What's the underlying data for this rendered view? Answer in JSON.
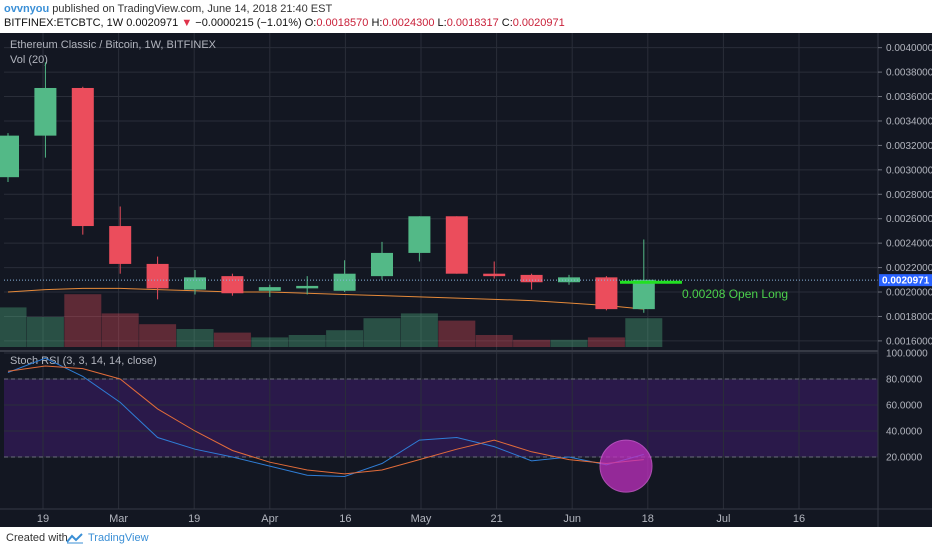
{
  "header": {
    "user": "ovvnyou",
    "published": "published on TradingView.com, June 14, 2018 21:40 EST",
    "symbol_line": "BITFINEX:ETCBTC, 1W",
    "last": "0.0020971",
    "change": "−0.0000215 (−1.01%)",
    "o_label": "O:",
    "o_value": "0.0018570",
    "h_label": "H:",
    "h_value": "0.0024300",
    "l_label": "L:",
    "l_value": "0.0018317",
    "c_label": "C:",
    "c_value": "0.0020971"
  },
  "main_pane": {
    "title": "Ethereum Classic / Bitcoin, 1W, BITFINEX",
    "vol_label": "Vol (20)",
    "price_tag": "0.0020971",
    "annotation": "0.00208 Open Long",
    "y_ticks": [
      "0.0040000",
      "0.0038000",
      "0.0036000",
      "0.0034000",
      "0.0032000",
      "0.0030000",
      "0.0028000",
      "0.0026000",
      "0.0024000",
      "0.0022000",
      "0.0020000",
      "0.0018000",
      "0.0016000"
    ]
  },
  "rsi_pane": {
    "title": "Stoch RSI (3, 3, 14, 14, close)",
    "y_ticks": [
      "100.0000",
      "80.0000",
      "60.0000",
      "40.0000",
      "20.0000"
    ]
  },
  "x_axis": {
    "labels": [
      "19",
      "Mar",
      "19",
      "Apr",
      "16",
      "May",
      "21",
      "Jun",
      "18",
      "Jul",
      "16"
    ]
  },
  "footer": {
    "created": "Created with",
    "brand": "TradingView"
  },
  "colors": {
    "up": "#53b987",
    "down": "#eb4d5c",
    "bg": "#131722",
    "band": "#2e1a4f",
    "k_line": "#2f7dd6",
    "d_line": "#e26c3a",
    "highlight": "#c030c0"
  },
  "chart_data": [
    {
      "type": "candlestick",
      "title": "Ethereum Classic / Bitcoin, 1W, BITFINEX",
      "ylim": [
        0.00155,
        0.00412
      ],
      "x_labels": [
        "19",
        "Mar",
        "19",
        "Apr",
        "16",
        "May",
        "21",
        "Jun",
        "18",
        "Jul",
        "16"
      ],
      "candles": [
        {
          "o": 0.00294,
          "h": 0.0033,
          "l": 0.0029,
          "c": 0.00328
        },
        {
          "o": 0.00328,
          "h": 0.00388,
          "l": 0.0031,
          "c": 0.00367
        },
        {
          "o": 0.00367,
          "h": 0.00368,
          "l": 0.00247,
          "c": 0.00254
        },
        {
          "o": 0.00254,
          "h": 0.0027,
          "l": 0.00215,
          "c": 0.00223
        },
        {
          "o": 0.00223,
          "h": 0.00229,
          "l": 0.00194,
          "c": 0.00203
        },
        {
          "o": 0.00202,
          "h": 0.00218,
          "l": 0.00198,
          "c": 0.00212
        },
        {
          "o": 0.00213,
          "h": 0.00215,
          "l": 0.00197,
          "c": 0.00199
        },
        {
          "o": 0.00201,
          "h": 0.00206,
          "l": 0.00196,
          "c": 0.00204
        },
        {
          "o": 0.00203,
          "h": 0.00213,
          "l": 0.00198,
          "c": 0.00205
        },
        {
          "o": 0.00201,
          "h": 0.00226,
          "l": 0.002,
          "c": 0.00215
        },
        {
          "o": 0.00213,
          "h": 0.00241,
          "l": 0.0021,
          "c": 0.00232
        },
        {
          "o": 0.00232,
          "h": 0.00262,
          "l": 0.00225,
          "c": 0.00262
        },
        {
          "o": 0.00262,
          "h": 0.00262,
          "l": 0.00215,
          "c": 0.00215
        },
        {
          "o": 0.00215,
          "h": 0.00225,
          "l": 0.00211,
          "c": 0.00213
        },
        {
          "o": 0.00214,
          "h": 0.00215,
          "l": 0.00202,
          "c": 0.00208
        },
        {
          "o": 0.00208,
          "h": 0.00214,
          "l": 0.00206,
          "c": 0.00212
        },
        {
          "o": 0.00212,
          "h": 0.00213,
          "l": 0.00185,
          "c": 0.00186
        },
        {
          "o": 0.00186,
          "h": 0.00243,
          "l": 0.00183,
          "c": 0.0021
        }
      ],
      "volume_ma_level": [
        0.002,
        0.00202,
        0.00203,
        0.00203,
        0.00202,
        0.00201,
        0.002,
        0.002,
        0.00199,
        0.00198,
        0.00197,
        0.00196,
        0.00195,
        0.00194,
        0.00193,
        0.00191,
        0.00189,
        0.00186
      ],
      "volume": [
        0.33,
        0.25,
        0.44,
        0.28,
        0.19,
        0.15,
        0.12,
        0.08,
        0.1,
        0.14,
        0.24,
        0.28,
        0.22,
        0.1,
        0.06,
        0.06,
        0.08,
        0.24
      ]
    },
    {
      "type": "line",
      "title": "Stoch RSI (3, 3, 14, 14, close)",
      "ylim": [
        -20,
        100
      ],
      "overbought": 80,
      "oversold": 20,
      "series": [
        {
          "name": "K",
          "color": "#2f7dd6",
          "values": [
            85,
            96,
            82,
            62,
            35,
            26,
            20,
            13,
            6,
            5,
            15,
            33,
            35,
            28,
            17,
            20,
            14,
            22
          ]
        },
        {
          "name": "D",
          "color": "#e26c3a",
          "values": [
            86,
            90,
            88,
            80,
            57,
            40,
            25,
            16,
            10,
            7,
            10,
            18,
            26,
            33,
            24,
            18,
            15,
            18
          ]
        }
      ]
    }
  ]
}
